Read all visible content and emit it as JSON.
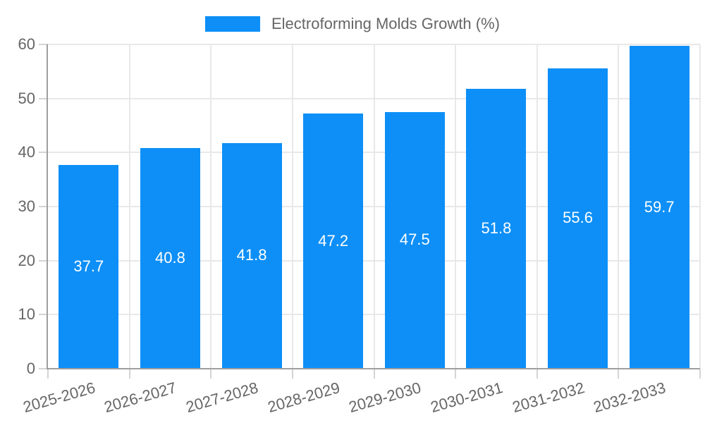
{
  "chart_data": {
    "type": "bar",
    "title": "Electroforming Molds Growth (%)",
    "categories": [
      "2025-2026",
      "2026-2027",
      "2027-2028",
      "2028-2029",
      "2029-2030",
      "2030-2031",
      "2031-2032",
      "2032-2033"
    ],
    "values": [
      37.7,
      40.8,
      41.8,
      47.2,
      47.5,
      51.8,
      55.6,
      59.7
    ],
    "value_labels": [
      "37.7",
      "40.8",
      "41.8",
      "47.2",
      "47.5",
      "51.8",
      "55.6",
      "59.7"
    ],
    "xlabel": "",
    "ylabel": "",
    "ylim": [
      0,
      60
    ],
    "yticks": [
      0,
      10,
      20,
      30,
      40,
      50,
      60
    ],
    "grid": true,
    "legend": {
      "position": "top",
      "label": "Electroforming Molds Growth (%)"
    },
    "colors": {
      "bar": "#0d8ff7",
      "grid_line": "#e8e8e8",
      "axis_line": "#9e9e9e",
      "tick_line": "#d4d4d4",
      "axis_text": "#666666",
      "value_text": "#ffffff",
      "background": "#ffffff"
    }
  }
}
